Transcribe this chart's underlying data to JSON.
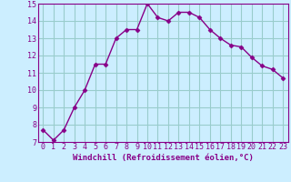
{
  "x": [
    0,
    1,
    2,
    3,
    4,
    5,
    6,
    7,
    8,
    9,
    10,
    11,
    12,
    13,
    14,
    15,
    16,
    17,
    18,
    19,
    20,
    21,
    22,
    23
  ],
  "y": [
    7.7,
    7.1,
    7.7,
    9.0,
    10.0,
    11.5,
    11.5,
    13.0,
    13.5,
    13.5,
    15.0,
    14.2,
    14.0,
    14.5,
    14.5,
    14.2,
    13.5,
    13.0,
    12.6,
    12.5,
    11.9,
    11.4,
    11.2,
    10.7
  ],
  "xlabel": "Windchill (Refroidissement éolien,°C)",
  "xlim": [
    -0.5,
    23.5
  ],
  "ylim": [
    7,
    15
  ],
  "yticks": [
    7,
    8,
    9,
    10,
    11,
    12,
    13,
    14,
    15
  ],
  "xticks": [
    0,
    1,
    2,
    3,
    4,
    5,
    6,
    7,
    8,
    9,
    10,
    11,
    12,
    13,
    14,
    15,
    16,
    17,
    18,
    19,
    20,
    21,
    22,
    23
  ],
  "line_color": "#880088",
  "marker": "D",
  "marker_size": 2.5,
  "bg_color": "#cceeff",
  "grid_color": "#99cccc",
  "xlabel_fontsize": 6.5,
  "tick_fontsize": 6.0,
  "line_width": 1.0
}
